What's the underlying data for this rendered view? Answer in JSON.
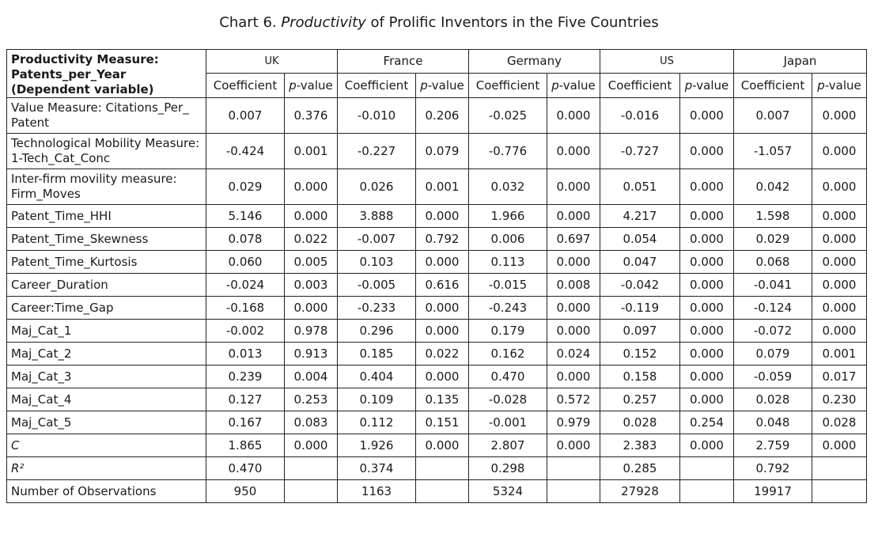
{
  "title": {
    "prefix": "Chart 6.",
    "emph": "Productivity",
    "suffix": "of Prolific Inventors in the Five Countries"
  },
  "table": {
    "header_label_lines": [
      "Productivity Measure:",
      "Patents_per_Year",
      "(Dependent variable)"
    ],
    "countries": [
      "UK",
      "France",
      "Germany",
      "US",
      "Japan"
    ],
    "sub_coef": "Coefficient",
    "sub_p_italic": "p",
    "sub_p_rest": "-value",
    "rows": [
      {
        "label": "Value Measure: Citations_Per_ Patent",
        "cells": [
          "0.007",
          "0.376",
          "-0.010",
          "0.206",
          "-0.025",
          "0.000",
          "-0.016",
          "0.000",
          "0.007",
          "0.000"
        ]
      },
      {
        "label": "Technological Mobility Measure: 1-Tech_Cat_Conc",
        "cells": [
          "-0.424",
          "0.001",
          "-0.227",
          "0.079",
          "-0.776",
          "0.000",
          "-0.727",
          "0.000",
          "-1.057",
          "0.000"
        ]
      },
      {
        "label": "Inter-firm movility measure: Firm_Moves",
        "cells": [
          "0.029",
          "0.000",
          "0.026",
          "0.001",
          "0.032",
          "0.000",
          "0.051",
          "0.000",
          "0.042",
          "0.000"
        ]
      },
      {
        "label": "Patent_Time_HHI",
        "cells": [
          "5.146",
          "0.000",
          "3.888",
          "0.000",
          "1.966",
          "0.000",
          "4.217",
          "0.000",
          "1.598",
          "0.000"
        ]
      },
      {
        "label": "Patent_Time_Skewness",
        "cells": [
          "0.078",
          "0.022",
          "-0.007",
          "0.792",
          "0.006",
          "0.697",
          "0.054",
          "0.000",
          "0.029",
          "0.000"
        ]
      },
      {
        "label": "Patent_Time_Kurtosis",
        "cells": [
          "0.060",
          "0.005",
          "0.103",
          "0.000",
          "0.113",
          "0.000",
          "0.047",
          "0.000",
          "0.068",
          "0.000"
        ]
      },
      {
        "label": "Career_Duration",
        "cells": [
          "-0.024",
          "0.003",
          "-0.005",
          "0.616",
          "-0.015",
          "0.008",
          "-0.042",
          "0.000",
          "-0.041",
          "0.000"
        ]
      },
      {
        "label": "Career:Time_Gap",
        "cells": [
          "-0.168",
          "0.000",
          "-0.233",
          "0.000",
          "-0.243",
          "0.000",
          "-0.119",
          "0.000",
          "-0.124",
          "0.000"
        ]
      },
      {
        "label": "Maj_Cat_1",
        "cells": [
          "-0.002",
          "0.978",
          "0.296",
          "0.000",
          "0.179",
          "0.000",
          "0.097",
          "0.000",
          "-0.072",
          "0.000"
        ]
      },
      {
        "label": "Maj_Cat_2",
        "cells": [
          "0.013",
          "0.913",
          "0.185",
          "0.022",
          "0.162",
          "0.024",
          "0.152",
          "0.000",
          "0.079",
          "0.001"
        ]
      },
      {
        "label": "Maj_Cat_3",
        "cells": [
          "0.239",
          "0.004",
          "0.404",
          "0.000",
          "0.470",
          "0.000",
          "0.158",
          "0.000",
          "-0.059",
          "0.017"
        ]
      },
      {
        "label": "Maj_Cat_4",
        "cells": [
          "0.127",
          "0.253",
          "0.109",
          "0.135",
          "-0.028",
          "0.572",
          "0.257",
          "0.000",
          "0.028",
          "0.230"
        ]
      },
      {
        "label": "Maj_Cat_5",
        "cells": [
          "0.167",
          "0.083",
          "0.112",
          "0.151",
          "-0.001",
          "0.979",
          "0.028",
          "0.254",
          "0.048",
          "0.028"
        ]
      },
      {
        "label": "C",
        "italic": true,
        "cells": [
          "1.865",
          "0.000",
          "1.926",
          "0.000",
          "2.807",
          "0.000",
          "2.383",
          "0.000",
          "2.759",
          "0.000"
        ]
      },
      {
        "label": "R²",
        "italic": true,
        "cells": [
          "0.470",
          "",
          "0.374",
          "",
          "0.298",
          "",
          "0.285",
          "",
          "0.792",
          ""
        ]
      },
      {
        "label": "Number of Observations",
        "cells": [
          "950",
          "",
          "1163",
          "",
          "5324",
          "",
          "27928",
          "",
          "19917",
          ""
        ]
      }
    ]
  }
}
